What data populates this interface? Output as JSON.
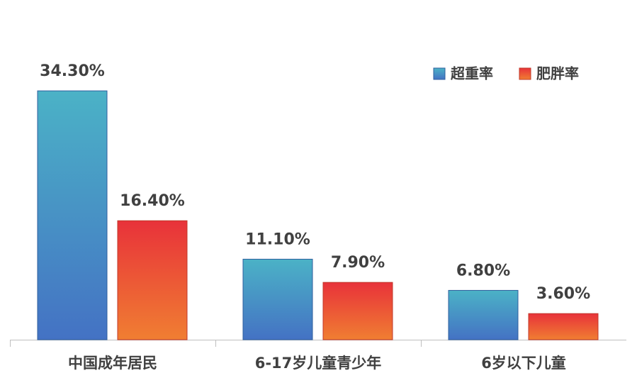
{
  "chart_data": {
    "type": "bar",
    "categories": [
      "中国成年居民",
      "6-17岁儿童青少年",
      "6岁以下儿童"
    ],
    "series": [
      {
        "name": "超重率",
        "color": "#4bb2c6",
        "values": [
          34.3,
          11.1,
          6.8
        ],
        "value_labels": [
          "34.30%",
          "11.10%",
          "6.80%"
        ]
      },
      {
        "name": "肥胖率",
        "color": "#e8323a",
        "values": [
          16.4,
          7.9,
          3.6
        ],
        "value_labels": [
          "16.40%",
          "7.90%",
          "3.60%"
        ]
      }
    ],
    "legend": "top-right"
  }
}
